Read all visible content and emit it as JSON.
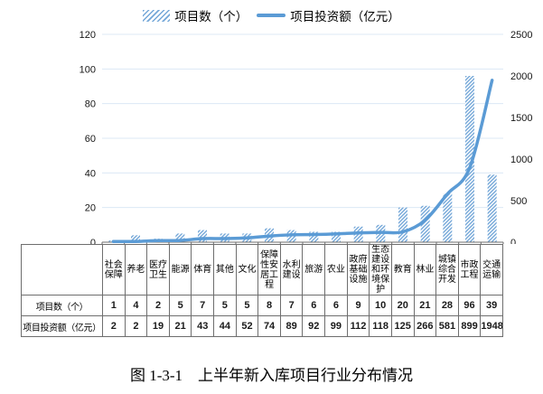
{
  "legend": {
    "bar_label": "项目数（个）",
    "line_label": "项目投资额（亿元）"
  },
  "caption": "图 1-3-1　上半年新入库项目行业分布情况",
  "colors": {
    "line": "#5B9BD5",
    "bar_stripe": "#74A7D8",
    "gridline": "#DCE8F4",
    "axis_line": "#6e6e6e",
    "tick": "#6e6e6e"
  },
  "chart_data": {
    "type": "bar+line combo",
    "title": "图 1-3-1　上半年新入库项目行业分布情况",
    "categories": [
      "社会保障",
      "养老",
      "医疗卫生",
      "能源",
      "体育",
      "其他",
      "文化",
      "保障性安居工程",
      "水利建设",
      "旅游",
      "农业",
      "政府基础设施",
      "生态建设和环境保护",
      "教育",
      "林业",
      "城镇综合开发",
      "市政工程",
      "交通运输"
    ],
    "series": [
      {
        "name": "项目数（个）",
        "type": "bar",
        "axis": "left",
        "values": [
          1,
          4,
          2,
          5,
          7,
          5,
          5,
          8,
          7,
          6,
          6,
          9,
          10,
          20,
          21,
          28,
          96,
          39
        ]
      },
      {
        "name": "项目投资额（亿元）",
        "type": "line",
        "axis": "right",
        "values": [
          2,
          2,
          19,
          21,
          43,
          44,
          52,
          74,
          89,
          92,
          99,
          112,
          118,
          125,
          266,
          581,
          899,
          1948
        ]
      }
    ],
    "left_axis": {
      "min": 0,
      "max": 120,
      "step": 20,
      "tick_labels": [
        "0",
        "20",
        "40",
        "60",
        "80",
        "100",
        "120"
      ]
    },
    "right_axis": {
      "min": 0,
      "max": 2500,
      "step": 500,
      "tick_labels": [
        "0",
        "500",
        "1000",
        "1500",
        "2000",
        "2500"
      ]
    },
    "grid": true,
    "legend_position": "top"
  },
  "table": {
    "row_headers": [
      "项目数（个）",
      "项目投资额（亿元）"
    ]
  }
}
